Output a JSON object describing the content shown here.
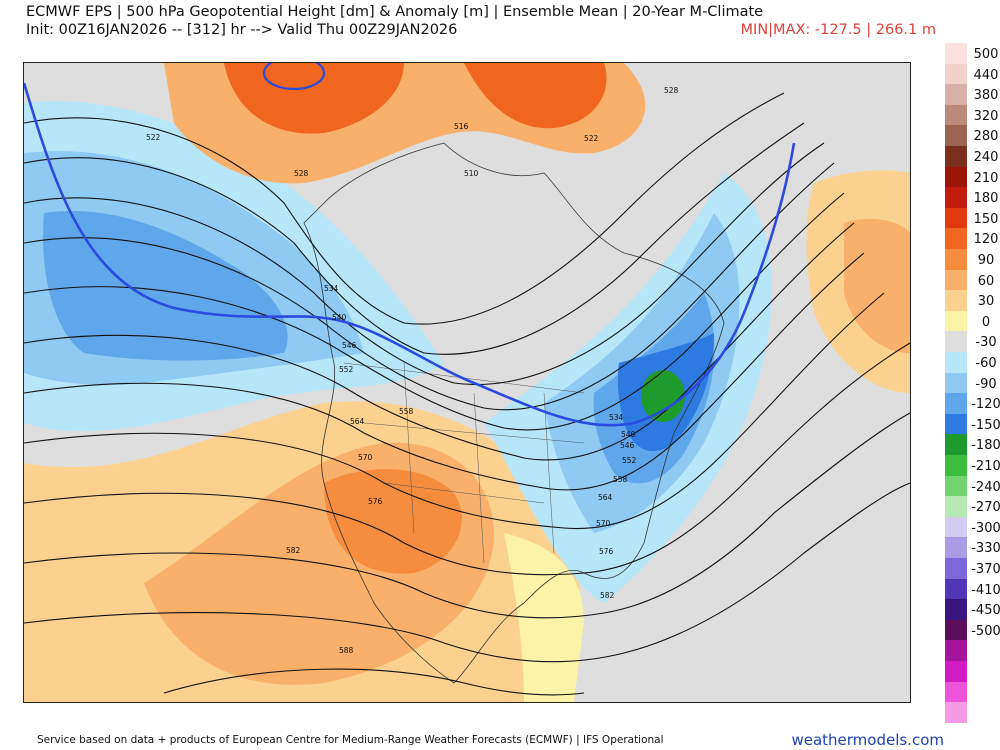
{
  "header": {
    "title": "ECMWF EPS | 500 hPa Geopotential Height [dm] & Anomaly [m] | Ensemble Mean | 20-Year M-Climate",
    "subtitle": "Init: 00Z16JAN2026 -- [312] hr --> Valid Thu 00Z29JAN2026",
    "minmax": "MIN|MAX: -127.5 | 266.1 m"
  },
  "legend": {
    "items": [
      {
        "value": "500",
        "color": "#fde0e0"
      },
      {
        "value": "440",
        "color": "#f1d1c8"
      },
      {
        "value": "380",
        "color": "#d9b0a5"
      },
      {
        "value": "320",
        "color": "#bc8a7a"
      },
      {
        "value": "280",
        "color": "#9c6450"
      },
      {
        "value": "240",
        "color": "#7a2f1d"
      },
      {
        "value": "210",
        "color": "#9c1408"
      },
      {
        "value": "180",
        "color": "#c21d0c"
      },
      {
        "value": "150",
        "color": "#e23a10"
      },
      {
        "value": "120",
        "color": "#f0661f"
      },
      {
        "value": "90",
        "color": "#f68c3e"
      },
      {
        "value": "60",
        "color": "#f9b06a"
      },
      {
        "value": "30",
        "color": "#fbd18f"
      },
      {
        "value": "0",
        "color": "#fdf3a8"
      },
      {
        "value": "-30",
        "color": "#dedede"
      },
      {
        "value": "-60",
        "color": "#b8e6f9"
      },
      {
        "value": "-90",
        "color": "#8fcaf3"
      },
      {
        "value": "-120",
        "color": "#5fa6ea"
      },
      {
        "value": "-150",
        "color": "#2d7ae0"
      },
      {
        "value": "-180",
        "color": "#1f9a2c"
      },
      {
        "value": "-210",
        "color": "#3cbd3e"
      },
      {
        "value": "-240",
        "color": "#72d46c"
      },
      {
        "value": "-270",
        "color": "#b6eab2"
      },
      {
        "value": "-300",
        "color": "#d2ccf0"
      },
      {
        "value": "-330",
        "color": "#a99ce4"
      },
      {
        "value": "-370",
        "color": "#7c68d8"
      },
      {
        "value": "-410",
        "color": "#5236b8"
      },
      {
        "value": "-450",
        "color": "#3a157f"
      },
      {
        "value": "-500",
        "color": "#5c0d5c"
      },
      {
        "value": "",
        "color": "#a4149c"
      },
      {
        "value": "",
        "color": "#d21bc4"
      },
      {
        "value": "",
        "color": "#ee53dc"
      },
      {
        "value": "",
        "color": "#f69ae8"
      }
    ]
  },
  "map": {
    "height_labels": [
      "522",
      "528",
      "534",
      "540",
      "546",
      "552",
      "558",
      "564",
      "570",
      "576",
      "582",
      "588",
      "516",
      "510",
      "522",
      "528",
      "534",
      "540",
      "546",
      "552",
      "558",
      "564",
      "570",
      "576",
      "582"
    ],
    "colors": {
      "contour": "#111111",
      "highlight_540": "#2a4be0",
      "land_border": "#333333"
    }
  },
  "footer": {
    "credit": "Service based on data + products of European Centre for Medium-Range Weather Forecasts (ECMWF) | IFS Operational",
    "brand": "weathermodels.com"
  }
}
